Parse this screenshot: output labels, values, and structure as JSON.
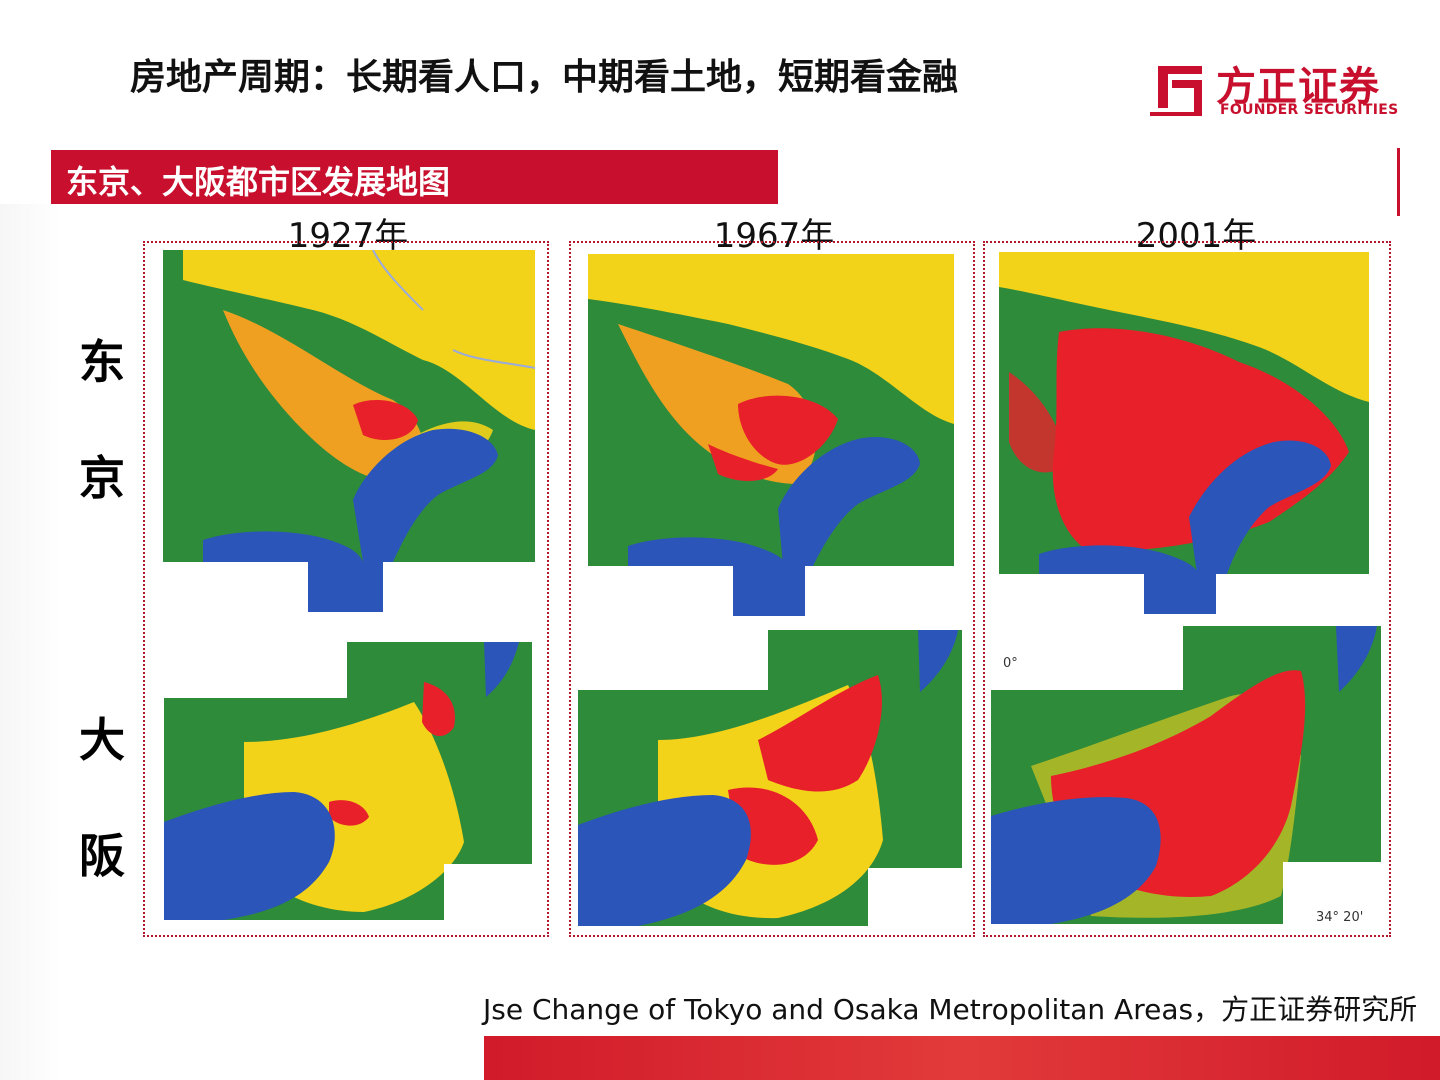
{
  "header": {
    "title": "房地产周期：长期看人口，中期看土地，短期看金融",
    "logo_cn": "方正证券",
    "logo_en": "FOUNDER SECURITIES"
  },
  "section": {
    "title": "东京、大阪都市区发展地图"
  },
  "years": [
    "1927年",
    "1967年",
    "2001年"
  ],
  "rows": [
    {
      "label_1": "东",
      "label_2": "京"
    },
    {
      "label_1": "大",
      "label_2": "阪"
    }
  ],
  "map_marks": {
    "deg": "0°",
    "coord": "34° 20'"
  },
  "source": "Jse Change of Tokyo and Osaka Metropolitan Areas，方正证券研究所",
  "colors": {
    "brand_red": "#c8102e",
    "urban": "#e8202a",
    "suburban": "#f3d21a",
    "forest": "#2e8b3a",
    "water": "#2b55b8"
  }
}
